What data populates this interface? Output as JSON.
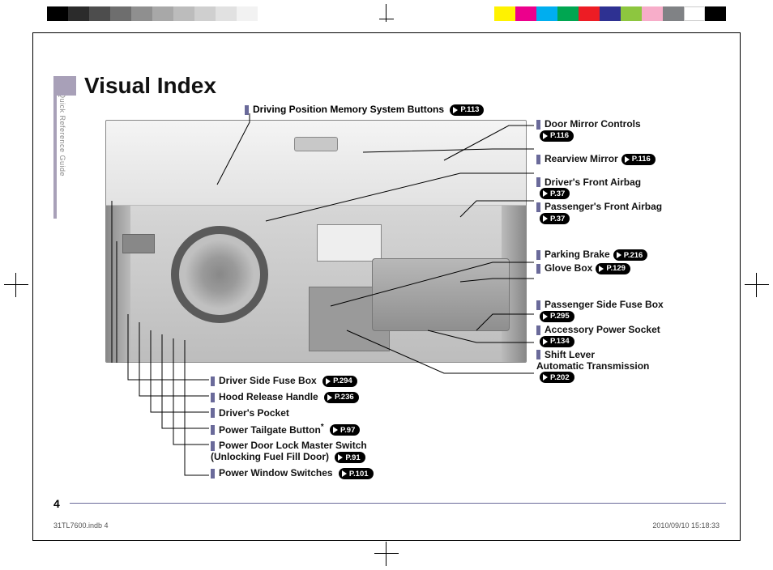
{
  "page": {
    "title": "Visual Index",
    "side_label": "Quick Reference Guide",
    "page_number": "4",
    "footer_file": "31TL7600.indb   4",
    "footer_date": "2010/09/10   15:18:33"
  },
  "top_callout": {
    "label": "Driving Position Memory System Buttons",
    "page": "P.113"
  },
  "right_callouts": [
    {
      "label": "Door Mirror Controls",
      "page": "P.116",
      "break_after_label": true
    },
    {
      "label": "Rearview Mirror",
      "page": "P.116"
    },
    {
      "label": "Driver's Front Airbag",
      "page": "P.37",
      "break_after_label": true
    },
    {
      "label": "Passenger's Front Airbag",
      "page": "P.37",
      "break_after_label": true
    },
    {
      "label": "Parking Brake",
      "page": "P.216"
    },
    {
      "label": "Glove Box",
      "page": "P.129"
    },
    {
      "label": "Passenger Side Fuse Box",
      "page": "P.295",
      "break_after_label": true
    },
    {
      "label": "Accessory Power Socket",
      "page": "P.134",
      "break_after_label": true
    },
    {
      "label": "Shift Lever",
      "sublabel": "Automatic Transmission",
      "page": "P.202",
      "break_after_label": true
    }
  ],
  "bottom_callouts": [
    {
      "label": "Driver Side Fuse Box",
      "page": "P.294"
    },
    {
      "label": "Hood Release Handle",
      "page": "P.236"
    },
    {
      "label": "Driver's Pocket"
    },
    {
      "label": "Power Tailgate Button",
      "star": true,
      "page": "P.97"
    },
    {
      "label": "Power Door Lock Master Switch",
      "sublabel": "(Unlocking Fuel Fill Door)",
      "page": "P.91"
    },
    {
      "label": "Power Window Switches",
      "page": "P.101"
    }
  ],
  "colors": {
    "accent": "#a8a0b8",
    "tick": "#6a6a9a",
    "gray_ramp": [
      "#000000",
      "#2b2b2b",
      "#4d4d4d",
      "#6e6e6e",
      "#8f8f8f",
      "#a8a8a8",
      "#bcbcbc",
      "#cfcfcf",
      "#e1e1e1",
      "#f2f2f2"
    ],
    "cmy": [
      "#fff200",
      "#ec008c",
      "#00aeef",
      "#00a651",
      "#ed1c24",
      "#2e3192",
      "#8dc63f",
      "#f7adc9",
      "#808285",
      "#ffffff",
      "#000000"
    ]
  }
}
